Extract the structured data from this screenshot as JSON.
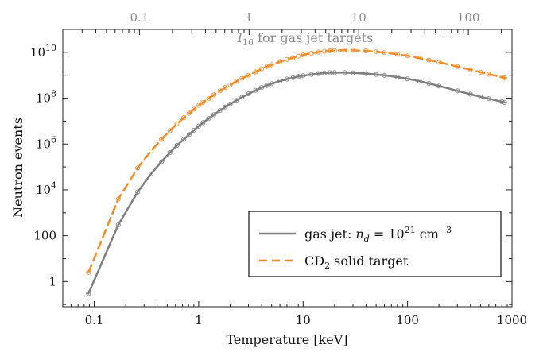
{
  "chart_data": {
    "type": "line",
    "xlabel": "Temperature [keV]",
    "ylabel": "Neutron events",
    "top_axis_label_base": "I",
    "top_axis_label_sub": "16",
    "top_axis_label_rest": " for gas jet targets",
    "x_scale": "log",
    "y_scale": "log",
    "xlim": [
      0.05,
      1000
    ],
    "ylim": [
      0.08,
      100000000000.0
    ],
    "top_xlim": [
      0.02,
      250
    ],
    "x_ticks": [
      0.1,
      1,
      10,
      100,
      1000
    ],
    "x_tick_labels": [
      "0.1",
      "1",
      "10",
      "100",
      "1000"
    ],
    "top_ticks": [
      0.1,
      1,
      10,
      100
    ],
    "top_tick_labels": [
      "0.1",
      "1",
      "10",
      "100"
    ],
    "y_ticks": [
      {
        "v": 1,
        "base": "1",
        "exp": ""
      },
      {
        "v": 100,
        "base": "100",
        "exp": ""
      },
      {
        "v": 10000,
        "base": "10",
        "exp": "4"
      },
      {
        "v": 1000000,
        "base": "10",
        "exp": "6"
      },
      {
        "v": 100000000,
        "base": "10",
        "exp": "8"
      },
      {
        "v": 10000000000,
        "base": "10",
        "exp": "10"
      }
    ],
    "grid": false,
    "legend_position": "bottom-right",
    "legend": [
      {
        "label_pre": "gas jet: ",
        "label_italic": "n",
        "label_sub": "d",
        "label_mid": " = 10",
        "label_sup": "21",
        "label_post": " cm",
        "label_sup2": "−3"
      },
      {
        "label_pre": "CD",
        "label_sub": "2",
        "label_post": " solid target"
      }
    ],
    "series": [
      {
        "name": "gas jet",
        "color": "#7f7f7f",
        "style": "solid",
        "x": [
          0.088,
          0.17,
          0.26,
          0.35,
          0.44,
          0.53,
          0.62,
          0.72,
          0.81,
          0.9,
          1.0,
          1.1,
          1.25,
          1.4,
          1.6,
          1.8,
          2.0,
          2.3,
          2.6,
          3.0,
          3.5,
          4.0,
          4.5,
          5.0,
          6.0,
          7.0,
          8.0,
          9.0,
          10,
          12,
          14,
          16,
          18,
          20,
          25,
          30,
          40,
          50,
          60,
          80,
          100,
          130,
          160,
          200,
          300,
          400,
          500,
          600,
          800,
          850
        ],
        "y": [
          0.3,
          300,
          8000,
          50000,
          170000,
          420000,
          870000,
          1600000,
          2600000,
          4000000,
          6000000,
          8500000,
          13000000,
          19000000,
          29000000,
          41000000,
          55000000,
          80000000,
          110000000,
          155000000,
          220000000,
          290000000,
          360000000,
          430000000,
          560000000,
          680000000,
          780000000,
          870000000,
          950000000,
          1080000000,
          1180000000,
          1250000000,
          1290000000,
          1300000000,
          1300000000,
          1270000000,
          1180000000,
          1080000000,
          990000000,
          830000000,
          700000000,
          550000000,
          440000000,
          340000000,
          210000000,
          150000000,
          115000000,
          95000000,
          70000000,
          65000000
        ]
      },
      {
        "name": "CD2 solid target",
        "color": "#f28c28",
        "style": "dashed",
        "x": [
          0.088,
          0.17,
          0.26,
          0.35,
          0.44,
          0.53,
          0.62,
          0.72,
          0.81,
          0.9,
          1.0,
          1.1,
          1.25,
          1.4,
          1.6,
          1.8,
          2.0,
          2.3,
          2.6,
          3.0,
          3.5,
          4.0,
          4.5,
          5.0,
          6.0,
          7.0,
          8.0,
          9.0,
          10,
          12,
          14,
          16,
          18,
          20,
          25,
          30,
          40,
          50,
          60,
          80,
          100,
          130,
          160,
          200,
          300,
          400,
          500,
          600,
          800,
          850
        ],
        "y": [
          2.5,
          4000,
          90000,
          500000,
          1600000,
          3800000,
          7600000,
          14000000,
          22000000,
          33000000,
          48000000,
          66000000,
          98000000,
          140000000,
          210000000,
          290000000,
          380000000,
          540000000,
          730000000,
          1000000000,
          1400000000,
          1900000000,
          2400000000,
          2900000000,
          3900000000,
          4900000000,
          5900000000,
          6800000000,
          7700000000,
          9200000000,
          10300000000,
          11100000000,
          11700000000,
          12000000000,
          12300000000,
          12200000000,
          11500000000,
          10600000000,
          9700000000,
          8200000000,
          7000000000,
          5600000000,
          4600000000,
          3700000000,
          2400000000,
          1750000000,
          1350000000,
          1100000000,
          830000000,
          780000000
        ]
      }
    ]
  }
}
